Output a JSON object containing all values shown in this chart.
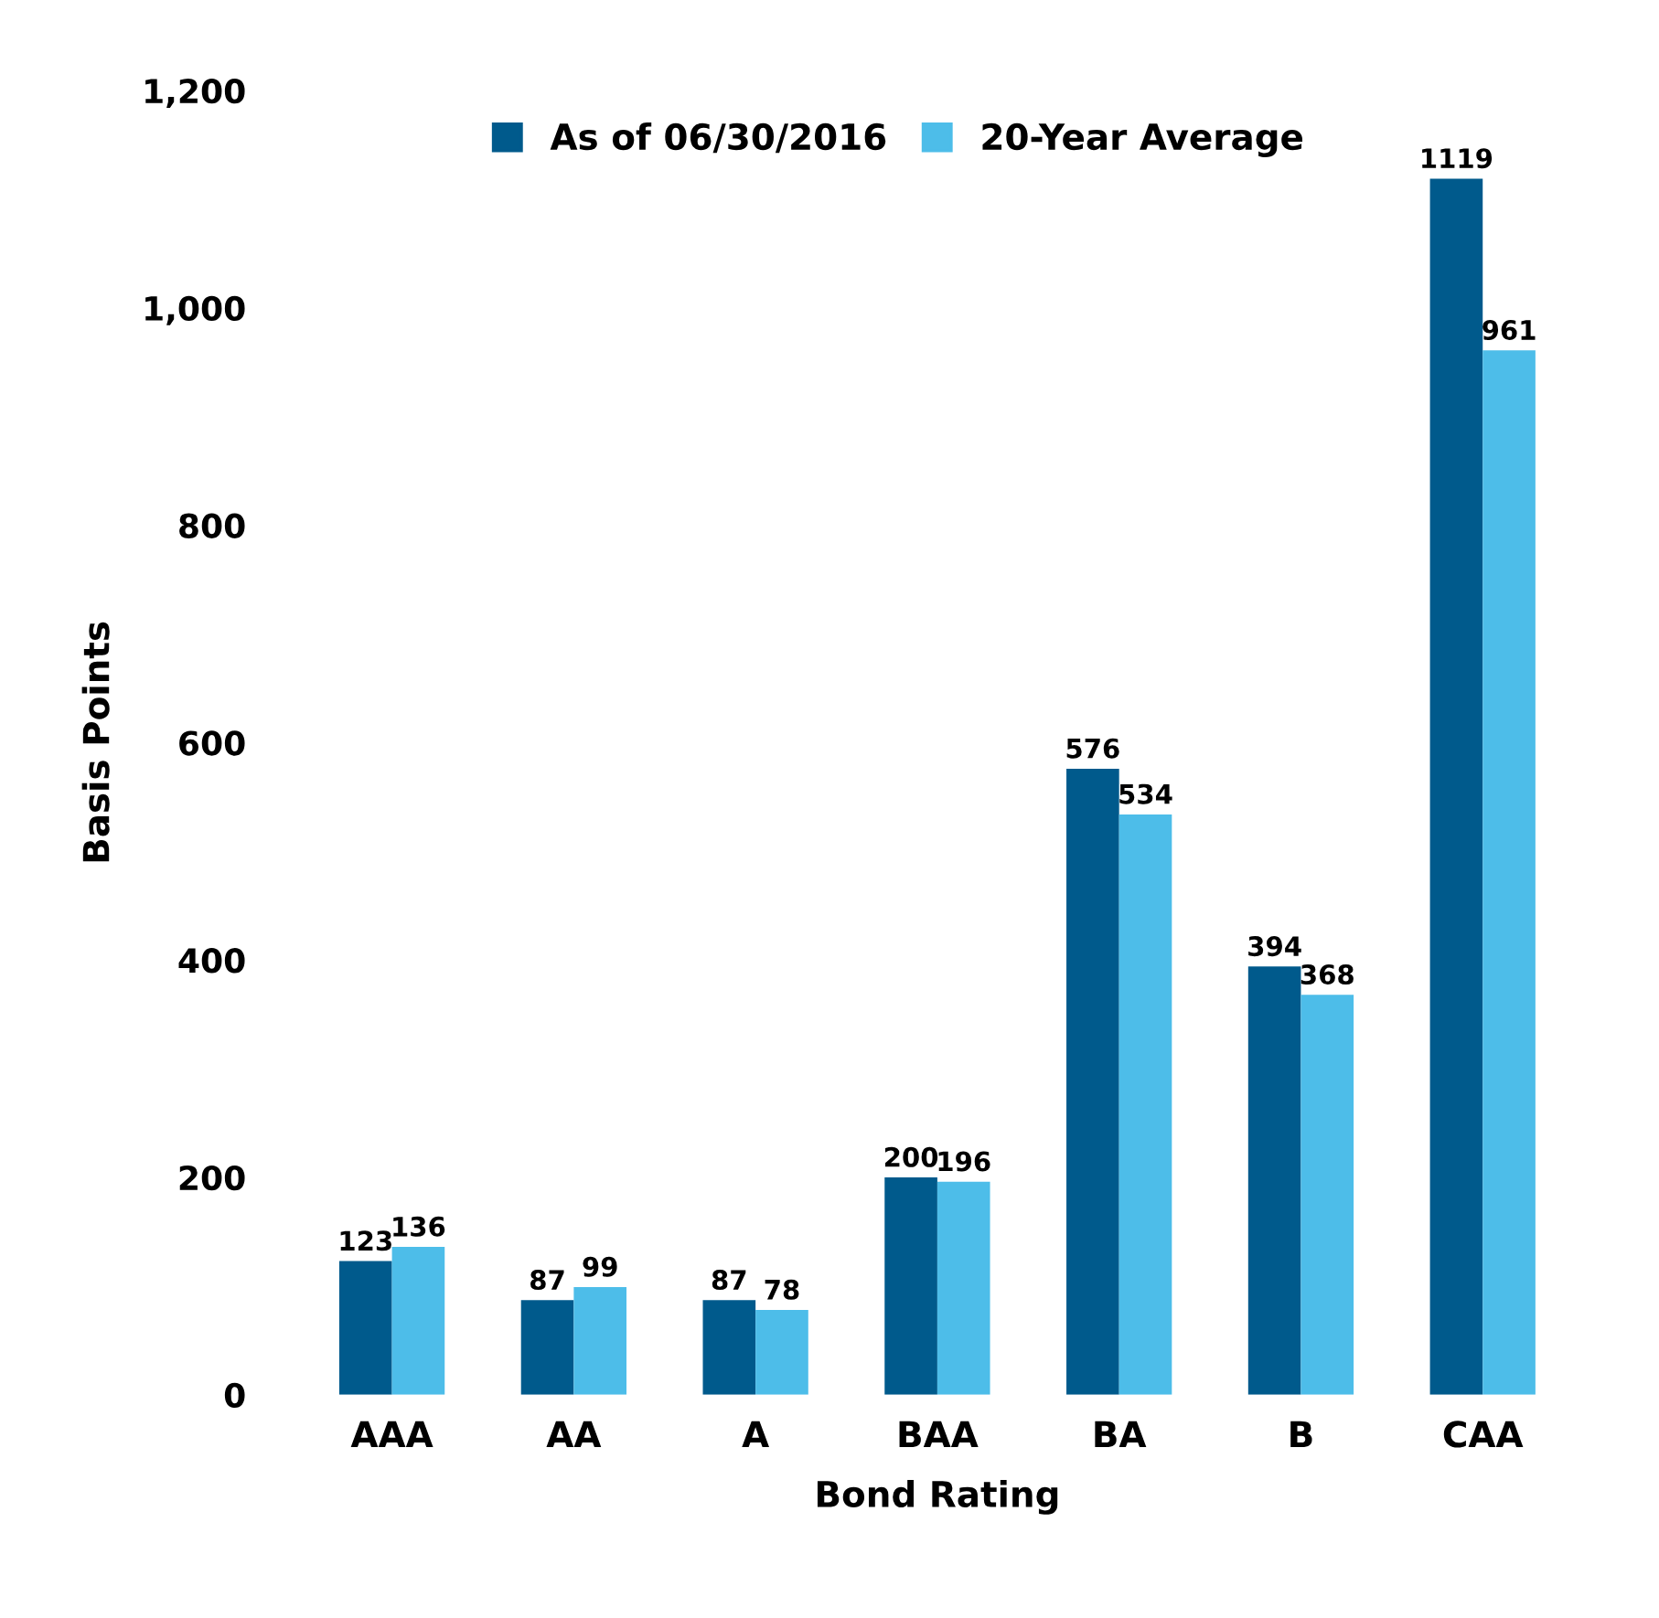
{
  "chart_data": {
    "type": "bar",
    "xlabel": "Bond Rating",
    "ylabel": "Basis Points",
    "categories": [
      "AAA",
      "AA",
      "A",
      "BAA",
      "BA",
      "B",
      "CAA"
    ],
    "series": [
      {
        "name": "As of 06/30/2016",
        "color": "#005a8c",
        "values": [
          123,
          87,
          87,
          200,
          576,
          394,
          1119
        ]
      },
      {
        "name": "20-Year Average",
        "color": "#4dbde9",
        "values": [
          136,
          99,
          78,
          196,
          534,
          368,
          961
        ]
      }
    ],
    "ylim": [
      0,
      1200
    ],
    "yticks": [
      {
        "value": 0,
        "label": "0"
      },
      {
        "value": 200,
        "label": "200"
      },
      {
        "value": 400,
        "label": "400"
      },
      {
        "value": 600,
        "label": "600"
      },
      {
        "value": 800,
        "label": "800"
      },
      {
        "value": 1000,
        "label": "1,000"
      },
      {
        "value": 1200,
        "label": "1,200"
      }
    ],
    "data_labels": true,
    "grid": false,
    "legend": "top"
  }
}
